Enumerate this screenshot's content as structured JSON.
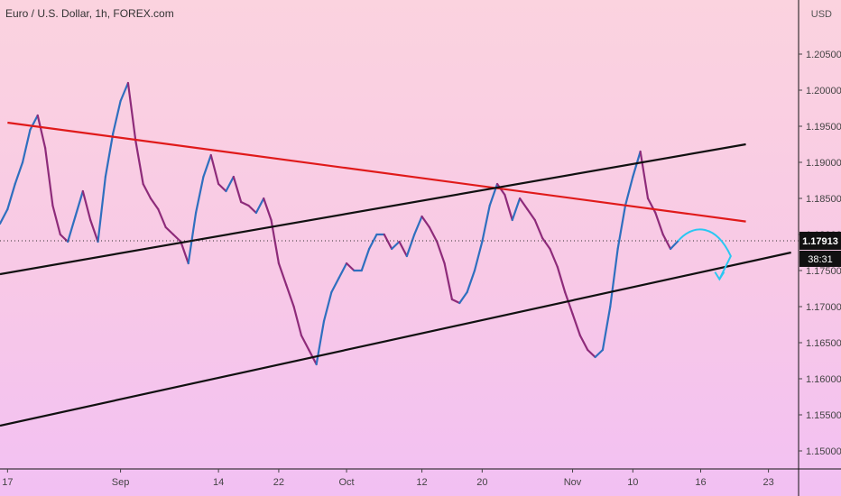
{
  "header": {
    "title": "Euro / U.S. Dollar, 1h, FOREX.com",
    "currency": "USD"
  },
  "price_badge": {
    "label": "1.17913",
    "countdown": "38:31",
    "bg": "#111111",
    "fg": "#ffffff"
  },
  "colors": {
    "candle_up": "#2f6fbf",
    "candle_down": "#8e2b7a",
    "resistance": "#e01a1a",
    "support": "#111111",
    "projection": "#29c7f2",
    "axis_line": "#111111"
  },
  "chart_data": {
    "type": "line",
    "title": "Euro / U.S. Dollar, 1h, FOREX.com",
    "y_unit": "USD",
    "y_ticks": [
      "1.15000",
      "1.15500",
      "1.16000",
      "1.16500",
      "1.17000",
      "1.17500",
      "1.18000",
      "1.18500",
      "1.19000",
      "1.19500",
      "1.20000",
      "1.20500"
    ],
    "ylim": [
      1.1475,
      1.2125
    ],
    "x_ticks": [
      {
        "label": "17",
        "pos": 0
      },
      {
        "label": "Sep",
        "pos": 15
      },
      {
        "label": "14",
        "pos": 28
      },
      {
        "label": "22",
        "pos": 36
      },
      {
        "label": "Oct",
        "pos": 45
      },
      {
        "label": "12",
        "pos": 55
      },
      {
        "label": "20",
        "pos": 63
      },
      {
        "label": "Nov",
        "pos": 75
      },
      {
        "label": "10",
        "pos": 83
      },
      {
        "label": "16",
        "pos": 92
      },
      {
        "label": "23",
        "pos": 101
      }
    ],
    "xlim": [
      -1,
      105
    ],
    "last_price": 1.17913,
    "series": [
      {
        "values": [
          [
            -1,
            1.1815
          ],
          [
            0,
            1.1835
          ],
          [
            1,
            1.187
          ],
          [
            2,
            1.19
          ],
          [
            3,
            1.1945
          ],
          [
            4,
            1.1965
          ],
          [
            5,
            1.192
          ],
          [
            6,
            1.184
          ],
          [
            7,
            1.18
          ],
          [
            8,
            1.179
          ],
          [
            9,
            1.1825
          ],
          [
            10,
            1.186
          ],
          [
            11,
            1.182
          ],
          [
            12,
            1.179
          ],
          [
            13,
            1.188
          ],
          [
            14,
            1.194
          ],
          [
            15,
            1.1985
          ],
          [
            16,
            1.201
          ],
          [
            17,
            1.193
          ],
          [
            18,
            1.187
          ],
          [
            19,
            1.185
          ],
          [
            20,
            1.1835
          ],
          [
            21,
            1.181
          ],
          [
            22,
            1.18
          ],
          [
            23,
            1.179
          ],
          [
            24,
            1.176
          ],
          [
            25,
            1.183
          ],
          [
            26,
            1.188
          ],
          [
            27,
            1.191
          ],
          [
            28,
            1.187
          ],
          [
            29,
            1.186
          ],
          [
            30,
            1.188
          ],
          [
            31,
            1.1845
          ],
          [
            32,
            1.184
          ],
          [
            33,
            1.183
          ],
          [
            34,
            1.185
          ],
          [
            35,
            1.182
          ],
          [
            36,
            1.176
          ],
          [
            37,
            1.173
          ],
          [
            38,
            1.17
          ],
          [
            39,
            1.166
          ],
          [
            40,
            1.164
          ],
          [
            41,
            1.162
          ],
          [
            42,
            1.168
          ],
          [
            43,
            1.172
          ],
          [
            44,
            1.174
          ],
          [
            45,
            1.176
          ],
          [
            46,
            1.175
          ],
          [
            47,
            1.175
          ],
          [
            48,
            1.178
          ],
          [
            49,
            1.18
          ],
          [
            50,
            1.18
          ],
          [
            51,
            1.178
          ],
          [
            52,
            1.179
          ],
          [
            53,
            1.177
          ],
          [
            54,
            1.18
          ],
          [
            55,
            1.1825
          ],
          [
            56,
            1.181
          ],
          [
            57,
            1.179
          ],
          [
            58,
            1.176
          ],
          [
            59,
            1.171
          ],
          [
            60,
            1.1705
          ],
          [
            61,
            1.172
          ],
          [
            62,
            1.175
          ],
          [
            63,
            1.179
          ],
          [
            64,
            1.184
          ],
          [
            65,
            1.187
          ],
          [
            66,
            1.1855
          ],
          [
            67,
            1.182
          ],
          [
            68,
            1.185
          ],
          [
            69,
            1.1835
          ],
          [
            70,
            1.182
          ],
          [
            71,
            1.1795
          ],
          [
            72,
            1.178
          ],
          [
            73,
            1.1755
          ],
          [
            74,
            1.172
          ],
          [
            75,
            1.169
          ],
          [
            76,
            1.166
          ],
          [
            77,
            1.164
          ],
          [
            78,
            1.163
          ],
          [
            79,
            1.164
          ],
          [
            80,
            1.17
          ],
          [
            81,
            1.178
          ],
          [
            82,
            1.184
          ],
          [
            83,
            1.188
          ],
          [
            84,
            1.1915
          ],
          [
            85,
            1.185
          ],
          [
            86,
            1.183
          ],
          [
            87,
            1.18
          ],
          [
            88,
            1.178
          ],
          [
            89,
            1.1791
          ]
        ]
      }
    ],
    "annotations": [
      {
        "type": "trendline",
        "role": "resistance",
        "from": [
          0,
          1.1955
        ],
        "to": [
          98,
          1.1818
        ]
      },
      {
        "type": "trendline",
        "role": "channel-upper",
        "from": [
          -1,
          1.1745
        ],
        "to": [
          98,
          1.1925
        ]
      },
      {
        "type": "trendline",
        "role": "channel-lower",
        "from": [
          -1,
          1.1535
        ],
        "to": [
          104,
          1.1775
        ]
      },
      {
        "type": "dotted_price_line",
        "y": 1.17913
      },
      {
        "type": "arrow",
        "path": [
          [
            89,
            1.1791
          ],
          [
            91,
            1.1815
          ],
          [
            94,
            1.1815
          ],
          [
            96,
            1.177
          ],
          [
            94.5,
            1.1738
          ]
        ]
      }
    ],
    "grid": false
  }
}
